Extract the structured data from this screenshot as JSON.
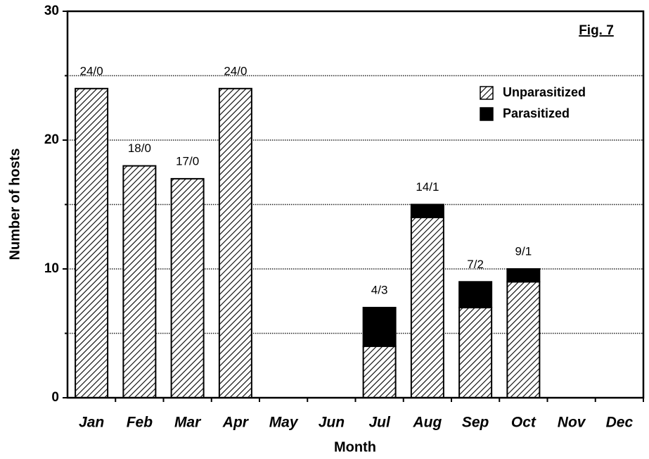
{
  "chart_data": {
    "type": "stacked_bar",
    "annotation": "Fig. 7",
    "xlabel": "Month",
    "ylabel": "Number of hosts",
    "categories": [
      "Jan",
      "Feb",
      "Mar",
      "Apr",
      "May",
      "Jun",
      "Jul",
      "Aug",
      "Sep",
      "Oct",
      "Nov",
      "Dec"
    ],
    "series": [
      {
        "name": "Unparasitized",
        "color": "#000000",
        "pattern": "hatch",
        "values": [
          24,
          18,
          17,
          24,
          null,
          null,
          4,
          14,
          7,
          9,
          null,
          null
        ]
      },
      {
        "name": "Parasitized",
        "color": "#000000",
        "values": [
          0,
          0,
          0,
          0,
          null,
          null,
          3,
          1,
          2,
          1,
          null,
          null
        ]
      }
    ],
    "bar_labels": [
      "24/0",
      "18/0",
      "17/0",
      "24/0",
      null,
      null,
      "4/3",
      "14/1",
      "7/2",
      "9/1",
      null,
      null
    ],
    "ylim": [
      0,
      30
    ],
    "yticks": [
      0,
      10,
      20,
      30
    ],
    "minor_yticks": [
      5,
      15,
      25
    ],
    "grid": true,
    "legend": "upper right"
  }
}
